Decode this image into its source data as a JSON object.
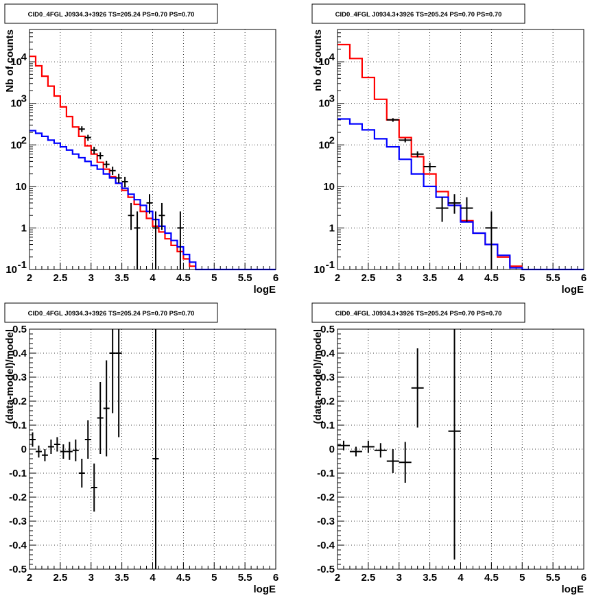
{
  "chart_data": [
    {
      "type": "line",
      "title": "CID0_4FGL J0934.3+3926 TS=205.24 PS=0.70 PS=0.70",
      "xlabel": "logE",
      "ylabel": "Nb of counts",
      "xlim": [
        2,
        6
      ],
      "ylim": [
        0.1,
        60000
      ],
      "log_y": true,
      "grid": true,
      "x_ticks": [
        "2",
        "2.5",
        "3",
        "3.5",
        "4",
        "4.5",
        "5",
        "5.5",
        "6"
      ],
      "y_ticks": [
        {
          "v": 0.1,
          "label": "10",
          "exp": "-1"
        },
        {
          "v": 1,
          "label": "1",
          "exp": ""
        },
        {
          "v": 10,
          "label": "10",
          "exp": ""
        },
        {
          "v": 100,
          "label": "10",
          "exp": "2"
        },
        {
          "v": 1000,
          "label": "10",
          "exp": "3"
        },
        {
          "v": 10000,
          "label": "10",
          "exp": "4"
        }
      ],
      "series": [
        {
          "color": "#ff0000",
          "edges": [
            2.0,
            2.1,
            2.2,
            2.3,
            2.4,
            2.5,
            2.6,
            2.7,
            2.8,
            2.9,
            3.0,
            3.1,
            3.2,
            3.3,
            3.4,
            3.5,
            3.6,
            3.7,
            3.8,
            3.9,
            4.0,
            4.1,
            4.2,
            4.3,
            4.4,
            4.5,
            4.6,
            4.7
          ],
          "values": [
            13500,
            8000,
            4500,
            2600,
            1500,
            820,
            480,
            270,
            160,
            95,
            60,
            38,
            26,
            17,
            12,
            8,
            5.5,
            3.7,
            2.5,
            1.7,
            1.1,
            0.8,
            0.55,
            0.38,
            0.27,
            0.18,
            0.12
          ]
        },
        {
          "color": "#0000ff",
          "edges": [
            2.0,
            2.1,
            2.2,
            2.3,
            2.4,
            2.5,
            2.6,
            2.7,
            2.8,
            2.9,
            3.0,
            3.1,
            3.2,
            3.3,
            3.4,
            3.5,
            3.6,
            3.7,
            3.8,
            3.9,
            4.0,
            4.1,
            4.2,
            4.3,
            4.4,
            4.5,
            4.6,
            4.7,
            4.8,
            4.9,
            5.0,
            5.1,
            5.2,
            5.3,
            5.4,
            5.5,
            5.6,
            5.7,
            5.8,
            5.9,
            6.0
          ],
          "values": [
            220,
            190,
            160,
            130,
            110,
            90,
            75,
            60,
            49,
            40,
            32,
            26,
            20,
            16,
            12,
            9,
            6.5,
            4.8,
            3.5,
            2.5,
            1.6,
            1.1,
            0.75,
            0.5,
            0.35,
            0.23,
            0.15,
            0.1,
            0.1,
            0.1,
            0.1,
            0.1,
            0.1,
            0.1,
            0.1,
            0.1,
            0.1,
            0.1,
            0.1,
            0.1
          ]
        }
      ],
      "points": [
        {
          "x": 2.85,
          "y": 240,
          "xerr": 0.05,
          "ylo": 205,
          "yhi": 280
        },
        {
          "x": 2.95,
          "y": 150,
          "xerr": 0.05,
          "ylo": 125,
          "yhi": 175
        },
        {
          "x": 3.05,
          "y": 75,
          "xerr": 0.05,
          "ylo": 60,
          "yhi": 90
        },
        {
          "x": 3.15,
          "y": 55,
          "xerr": 0.05,
          "ylo": 45,
          "yhi": 66
        },
        {
          "x": 3.25,
          "y": 34,
          "xerr": 0.05,
          "ylo": 28,
          "yhi": 41
        },
        {
          "x": 3.35,
          "y": 24,
          "xerr": 0.05,
          "ylo": 19,
          "yhi": 30
        },
        {
          "x": 3.45,
          "y": 16,
          "xerr": 0.05,
          "ylo": 12,
          "yhi": 20
        },
        {
          "x": 3.55,
          "y": 13,
          "xerr": 0.05,
          "ylo": 9.5,
          "yhi": 17
        },
        {
          "x": 3.65,
          "y": 2,
          "xerr": 0.05,
          "ylo": 0.9,
          "yhi": 4
        },
        {
          "x": 3.75,
          "y": 1,
          "xerr": 0.05,
          "ylo": 0.1,
          "yhi": 2.5
        },
        {
          "x": 3.95,
          "y": 4,
          "xerr": 0.05,
          "ylo": 2.2,
          "yhi": 6.5
        },
        {
          "x": 4.05,
          "y": 1,
          "xerr": 0.05,
          "ylo": 0.1,
          "yhi": 2.5
        },
        {
          "x": 4.15,
          "y": 2,
          "xerr": 0.05,
          "ylo": 0.9,
          "yhi": 4
        },
        {
          "x": 4.45,
          "y": 1,
          "xerr": 0.05,
          "ylo": 0.1,
          "yhi": 2.5
        }
      ]
    },
    {
      "type": "line",
      "title": "CID0_4FGL J0934.3+3926 TS=205.24 PS=0.70 PS=0.70",
      "xlabel": "logE",
      "ylabel": "nb of counts",
      "xlim": [
        2,
        6
      ],
      "ylim": [
        0.1,
        60000
      ],
      "log_y": true,
      "grid": true,
      "x_ticks": [
        "2",
        "2.5",
        "3",
        "3.5",
        "4",
        "4.5",
        "5",
        "5.5",
        "6"
      ],
      "y_ticks": [
        {
          "v": 0.1,
          "label": "10",
          "exp": "-1"
        },
        {
          "v": 1,
          "label": "1",
          "exp": ""
        },
        {
          "v": 10,
          "label": "10",
          "exp": ""
        },
        {
          "v": 100,
          "label": "10",
          "exp": "2"
        },
        {
          "v": 1000,
          "label": "10",
          "exp": "3"
        },
        {
          "v": 10000,
          "label": "10",
          "exp": "4"
        }
      ],
      "series": [
        {
          "color": "#ff0000",
          "edges": [
            2.0,
            2.2,
            2.4,
            2.6,
            2.8,
            3.0,
            3.2,
            3.4,
            3.6,
            3.8,
            4.0,
            4.2,
            4.4,
            4.6,
            4.8,
            5.0
          ],
          "values": [
            26000,
            12000,
            4200,
            1250,
            400,
            150,
            52,
            20,
            7.5,
            3.5,
            1.5,
            0.75,
            0.4,
            0.2,
            0.12
          ]
        },
        {
          "color": "#0000ff",
          "edges": [
            2.0,
            2.2,
            2.4,
            2.6,
            2.8,
            3.0,
            3.2,
            3.4,
            3.6,
            3.8,
            4.0,
            4.2,
            4.4,
            4.6,
            4.8,
            5.0,
            5.2,
            5.4,
            5.6,
            5.8,
            6.0
          ],
          "values": [
            420,
            320,
            230,
            140,
            90,
            45,
            20,
            10,
            5.5,
            3.5,
            1.4,
            0.75,
            0.4,
            0.22,
            0.11,
            0.1,
            0.1,
            0.1,
            0.1,
            0.1
          ]
        }
      ],
      "points": [
        {
          "x": 2.9,
          "y": 400,
          "xerr": 0.1,
          "ylo": 360,
          "yhi": 440
        },
        {
          "x": 3.1,
          "y": 130,
          "xerr": 0.1,
          "ylo": 115,
          "yhi": 145
        },
        {
          "x": 3.3,
          "y": 60,
          "xerr": 0.1,
          "ylo": 50,
          "yhi": 70
        },
        {
          "x": 3.5,
          "y": 30,
          "xerr": 0.1,
          "ylo": 23,
          "yhi": 37
        },
        {
          "x": 3.7,
          "y": 3,
          "xerr": 0.1,
          "ylo": 1.4,
          "yhi": 5.5
        },
        {
          "x": 3.9,
          "y": 4,
          "xerr": 0.1,
          "ylo": 2.2,
          "yhi": 6.5
        },
        {
          "x": 4.1,
          "y": 3,
          "xerr": 0.1,
          "ylo": 1.4,
          "yhi": 5.5
        },
        {
          "x": 4.5,
          "y": 1,
          "xerr": 0.1,
          "ylo": 0.1,
          "yhi": 2.5
        }
      ]
    },
    {
      "type": "scatter",
      "title": "CID0_4FGL J0934.3+3926 TS=205.24 PS=0.70 PS=0.70",
      "xlabel": "logE",
      "ylabel": "(data-model)/model",
      "xlim": [
        2,
        6
      ],
      "ylim": [
        -0.5,
        0.5
      ],
      "log_y": false,
      "grid": true,
      "x_ticks": [
        "2",
        "2.5",
        "3",
        "3.5",
        "4",
        "4.5",
        "5",
        "5.5",
        "6"
      ],
      "y_ticks": [
        {
          "v": -0.5,
          "label": "-0.5",
          "exp": ""
        },
        {
          "v": -0.4,
          "label": "-0.4",
          "exp": ""
        },
        {
          "v": -0.3,
          "label": "-0.3",
          "exp": ""
        },
        {
          "v": -0.2,
          "label": "-0.2",
          "exp": ""
        },
        {
          "v": -0.1,
          "label": "-0.1",
          "exp": ""
        },
        {
          "v": 0,
          "label": "0",
          "exp": ""
        },
        {
          "v": 0.1,
          "label": "0.1",
          "exp": ""
        },
        {
          "v": 0.2,
          "label": "0.2",
          "exp": ""
        },
        {
          "v": 0.3,
          "label": "0.3",
          "exp": ""
        },
        {
          "v": 0.4,
          "label": "0.4",
          "exp": ""
        },
        {
          "v": 0.5,
          "label": "0.5",
          "exp": ""
        }
      ],
      "series": [],
      "points": [
        {
          "x": 2.05,
          "y": 0.04,
          "xerr": 0.05,
          "ylo": 0.01,
          "yhi": 0.07
        },
        {
          "x": 2.15,
          "y": -0.01,
          "xerr": 0.05,
          "ylo": -0.035,
          "yhi": 0.015
        },
        {
          "x": 2.25,
          "y": -0.025,
          "xerr": 0.05,
          "ylo": -0.05,
          "yhi": 0.0
        },
        {
          "x": 2.35,
          "y": 0.01,
          "xerr": 0.05,
          "ylo": -0.02,
          "yhi": 0.04
        },
        {
          "x": 2.45,
          "y": 0.02,
          "xerr": 0.05,
          "ylo": -0.01,
          "yhi": 0.05
        },
        {
          "x": 2.55,
          "y": -0.01,
          "xerr": 0.05,
          "ylo": -0.04,
          "yhi": 0.02
        },
        {
          "x": 2.65,
          "y": -0.01,
          "xerr": 0.05,
          "ylo": -0.045,
          "yhi": 0.03
        },
        {
          "x": 2.75,
          "y": -0.005,
          "xerr": 0.05,
          "ylo": -0.05,
          "yhi": 0.04
        },
        {
          "x": 2.85,
          "y": -0.1,
          "xerr": 0.05,
          "ylo": -0.16,
          "yhi": -0.04
        },
        {
          "x": 2.95,
          "y": 0.04,
          "xerr": 0.05,
          "ylo": -0.04,
          "yhi": 0.12
        },
        {
          "x": 3.05,
          "y": -0.16,
          "xerr": 0.05,
          "ylo": -0.26,
          "yhi": -0.06
        },
        {
          "x": 3.15,
          "y": 0.13,
          "xerr": 0.05,
          "ylo": -0.02,
          "yhi": 0.28
        },
        {
          "x": 3.25,
          "y": 0.17,
          "xerr": 0.05,
          "ylo": -0.03,
          "yhi": 0.37
        },
        {
          "x": 3.35,
          "y": 0.4,
          "xerr": 0.05,
          "ylo": 0.15,
          "yhi": 0.5
        },
        {
          "x": 3.45,
          "y": 0.4,
          "xerr": 0.05,
          "ylo": 0.05,
          "yhi": 0.5
        },
        {
          "x": 4.05,
          "y": -0.04,
          "xerr": 0.05,
          "ylo": -0.5,
          "yhi": 0.5
        }
      ]
    },
    {
      "type": "scatter",
      "title": "CID0_4FGL J0934.3+3926 TS=205.24 PS=0.70 PS=0.70",
      "xlabel": "logE",
      "ylabel": "(data-model)/model",
      "xlim": [
        2,
        6
      ],
      "ylim": [
        -0.5,
        0.5
      ],
      "log_y": false,
      "grid": true,
      "x_ticks": [
        "2",
        "2.5",
        "3",
        "3.5",
        "4",
        "4.5",
        "5",
        "5.5",
        "6"
      ],
      "y_ticks": [
        {
          "v": -0.5,
          "label": "-0.5",
          "exp": ""
        },
        {
          "v": -0.4,
          "label": "-0.4",
          "exp": ""
        },
        {
          "v": -0.3,
          "label": "-0.3",
          "exp": ""
        },
        {
          "v": -0.2,
          "label": "-0.2",
          "exp": ""
        },
        {
          "v": -0.1,
          "label": "-0.1",
          "exp": ""
        },
        {
          "v": 0,
          "label": "0",
          "exp": ""
        },
        {
          "v": 0.1,
          "label": "0.1",
          "exp": ""
        },
        {
          "v": 0.2,
          "label": "0.2",
          "exp": ""
        },
        {
          "v": 0.3,
          "label": "0.3",
          "exp": ""
        },
        {
          "v": 0.4,
          "label": "0.4",
          "exp": ""
        },
        {
          "v": 0.5,
          "label": "0.5",
          "exp": ""
        }
      ],
      "series": [],
      "points": [
        {
          "x": 2.1,
          "y": 0.015,
          "xerr": 0.1,
          "ylo": -0.005,
          "yhi": 0.035
        },
        {
          "x": 2.3,
          "y": -0.01,
          "xerr": 0.1,
          "ylo": -0.03,
          "yhi": 0.01
        },
        {
          "x": 2.5,
          "y": 0.01,
          "xerr": 0.1,
          "ylo": -0.015,
          "yhi": 0.035
        },
        {
          "x": 2.7,
          "y": -0.005,
          "xerr": 0.1,
          "ylo": -0.035,
          "yhi": 0.025
        },
        {
          "x": 2.9,
          "y": -0.05,
          "xerr": 0.1,
          "ylo": -0.1,
          "yhi": 0.0
        },
        {
          "x": 3.1,
          "y": -0.055,
          "xerr": 0.1,
          "ylo": -0.14,
          "yhi": 0.03
        },
        {
          "x": 3.3,
          "y": 0.255,
          "xerr": 0.1,
          "ylo": 0.09,
          "yhi": 0.42
        },
        {
          "x": 3.9,
          "y": 0.075,
          "xerr": 0.1,
          "ylo": -0.46,
          "yhi": 0.5
        }
      ]
    }
  ]
}
